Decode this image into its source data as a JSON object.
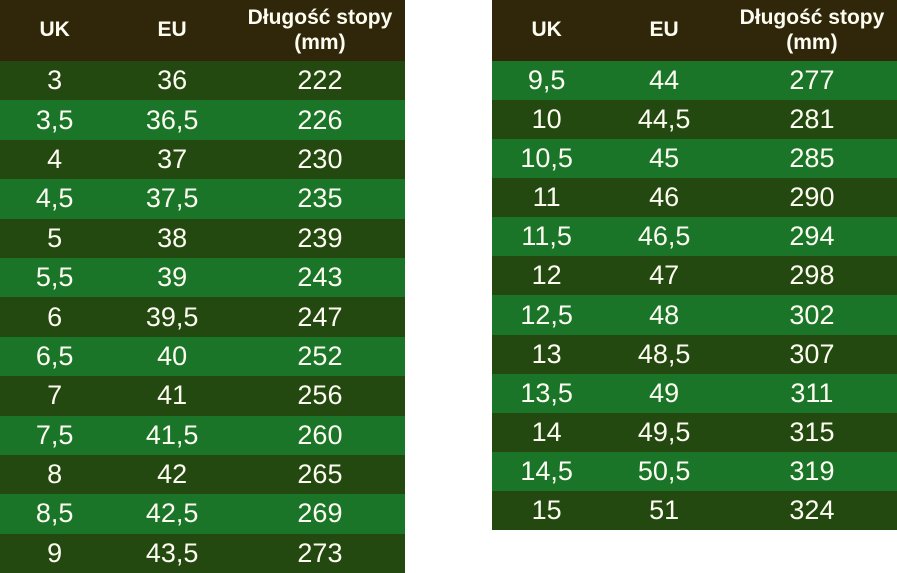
{
  "colors": {
    "page_background": "#ffffff",
    "header_bg": "#30260a",
    "row_dark": "#234810",
    "row_light": "#1a7529",
    "text": "#fcfcf0"
  },
  "chart_data": [
    {
      "type": "table",
      "title": "",
      "columns": [
        "UK",
        "EU",
        "Długość stopy (mm)"
      ],
      "header_lines": {
        "uk": "UK",
        "eu": "EU",
        "length_line1": "Długość stopy",
        "length_line2": "(mm)"
      },
      "first_row_shade": "dark",
      "rows": [
        [
          "3",
          "36",
          "222"
        ],
        [
          "3,5",
          "36,5",
          "226"
        ],
        [
          "4",
          "37",
          "230"
        ],
        [
          "4,5",
          "37,5",
          "235"
        ],
        [
          "5",
          "38",
          "239"
        ],
        [
          "5,5",
          "39",
          "243"
        ],
        [
          "6",
          "39,5",
          "247"
        ],
        [
          "6,5",
          "40",
          "252"
        ],
        [
          "7",
          "41",
          "256"
        ],
        [
          "7,5",
          "41,5",
          "260"
        ],
        [
          "8",
          "42",
          "265"
        ],
        [
          "8,5",
          "42,5",
          "269"
        ],
        [
          "9",
          "43,5",
          "273"
        ]
      ]
    },
    {
      "type": "table",
      "title": "",
      "columns": [
        "UK",
        "EU",
        "Długość stopy (mm)"
      ],
      "header_lines": {
        "uk": "UK",
        "eu": "EU",
        "length_line1": "Długość stopy",
        "length_line2": "(mm)"
      },
      "first_row_shade": "light",
      "rows": [
        [
          "9,5",
          "44",
          "277"
        ],
        [
          "10",
          "44,5",
          "281"
        ],
        [
          "10,5",
          "45",
          "285"
        ],
        [
          "11",
          "46",
          "290"
        ],
        [
          "11,5",
          "46,5",
          "294"
        ],
        [
          "12",
          "47",
          "298"
        ],
        [
          "12,5",
          "48",
          "302"
        ],
        [
          "13",
          "48,5",
          "307"
        ],
        [
          "13,5",
          "49",
          "311"
        ],
        [
          "14",
          "49,5",
          "315"
        ],
        [
          "14,5",
          "50,5",
          "319"
        ],
        [
          "15",
          "51",
          "324"
        ]
      ]
    }
  ]
}
